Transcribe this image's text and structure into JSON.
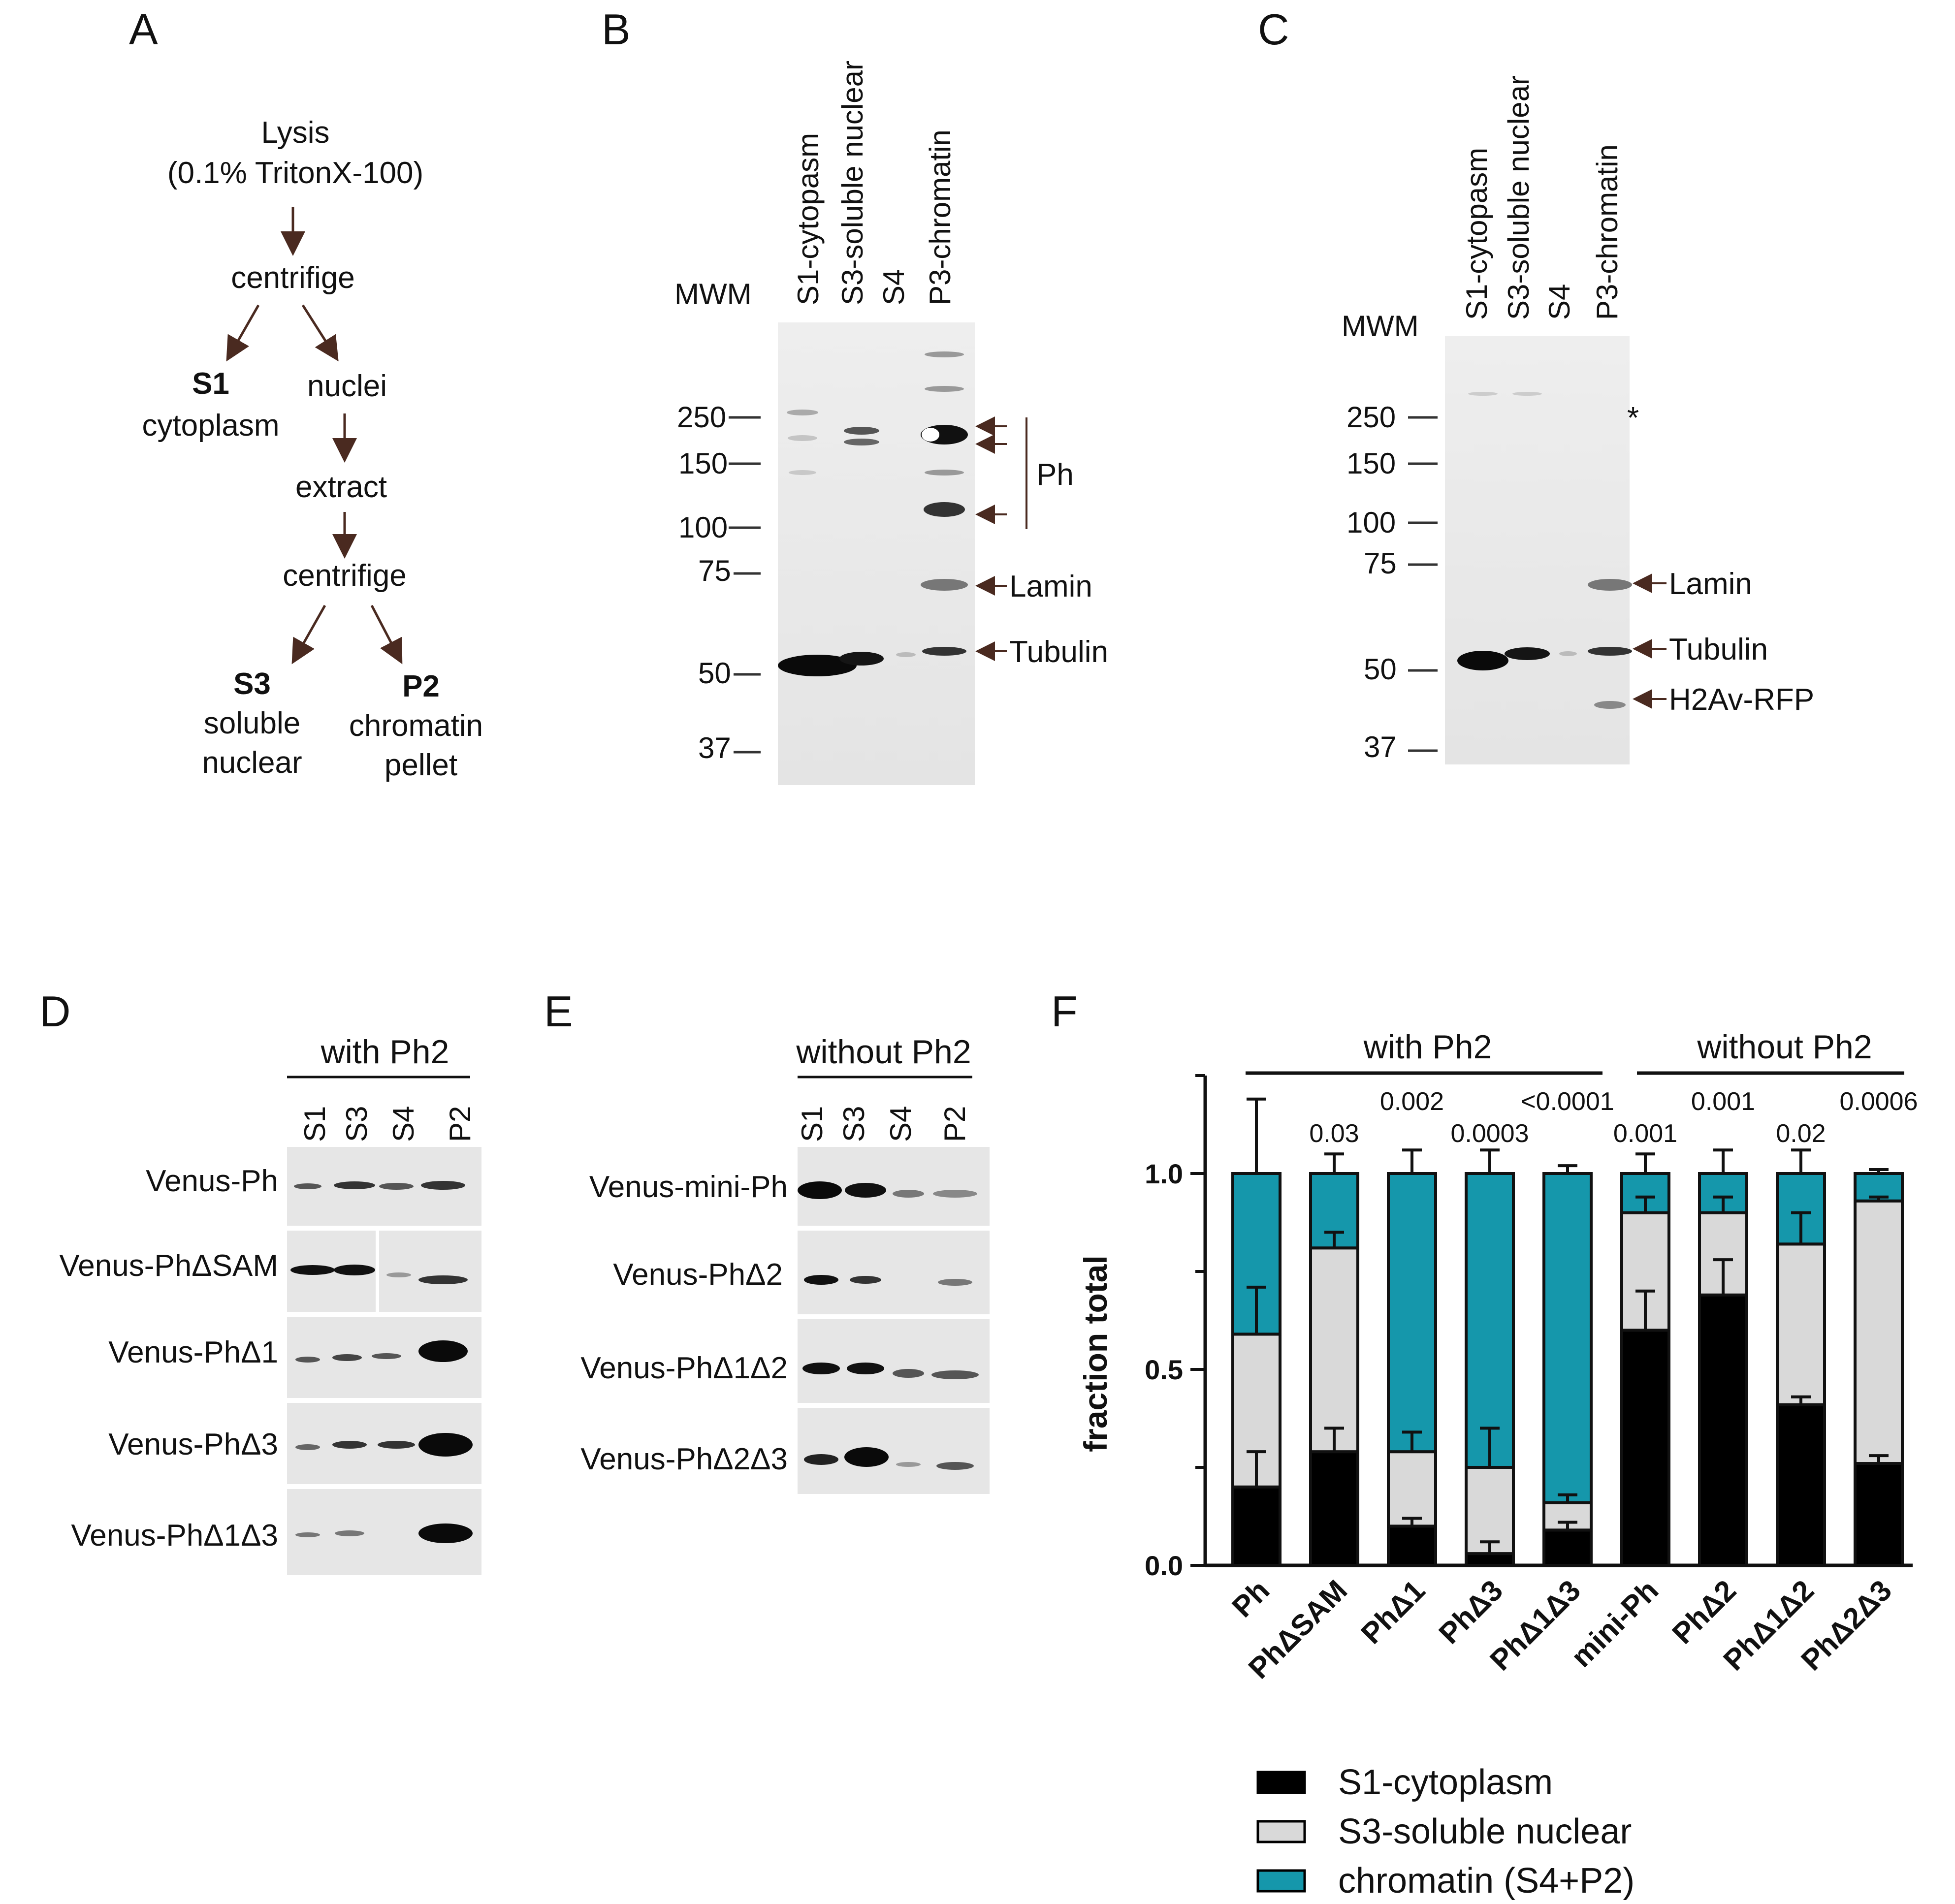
{
  "panels": {
    "A": "A",
    "B": "B",
    "C": "C",
    "D": "D",
    "E": "E",
    "F": "F"
  },
  "flowchart": {
    "lysis": "Lysis",
    "lysis_detail": "(0.1% TritonX-100)",
    "centrifuge1": "centrifige",
    "s1_bold": "S1",
    "s1_label": "cytoplasm",
    "nuclei": "nuclei",
    "extract": "extract",
    "centrifuge2": "centrifige",
    "s3_bold": "S3",
    "s3_line1": "soluble",
    "s3_line2": "nuclear",
    "p2_bold": "P2",
    "p2_line1": "chromatin",
    "p2_line2": "pellet"
  },
  "blot_b": {
    "mwm": "MWM",
    "lanes": [
      "S1-cytopasm",
      "S3-soluble nuclear",
      "S4",
      "P3-chromatin"
    ],
    "markers": [
      "250",
      "150",
      "100",
      "75",
      "50",
      "37"
    ],
    "bands": [
      "Ph",
      "Lamin",
      "Tubulin"
    ]
  },
  "blot_c": {
    "mwm": "MWM",
    "lanes": [
      "S1-cytopasm",
      "S3-soluble nuclear",
      "S4",
      "P3-chromatin"
    ],
    "markers": [
      "250",
      "150",
      "100",
      "75",
      "50",
      "37"
    ],
    "star": "*",
    "bands": [
      "Lamin",
      "Tubulin",
      "H2Av-RFP"
    ]
  },
  "blot_d": {
    "header": "with Ph2",
    "lanes": [
      "S1",
      "S3",
      "S4",
      "P2"
    ],
    "rows": [
      "Venus-Ph",
      "Venus-PhΔSAM",
      "Venus-PhΔ1",
      "Venus-PhΔ3",
      "Venus-PhΔ1Δ3"
    ]
  },
  "blot_e": {
    "header": "without Ph2",
    "lanes": [
      "S1",
      "S3",
      "S4",
      "P2"
    ],
    "rows": [
      "Venus-mini-Ph",
      "Venus-PhΔ2",
      "Venus-PhΔ1Δ2",
      "Venus-PhΔ2Δ3"
    ]
  },
  "chart_data": {
    "type": "bar",
    "stacked": true,
    "title": "",
    "xlabel": "",
    "ylabel": "fraction total",
    "ylim": [
      0,
      1.25
    ],
    "yticks": [
      "0.0",
      "0.5",
      "1.0"
    ],
    "group_labels": [
      "with Ph2",
      "without Ph2"
    ],
    "categories": [
      "Ph",
      "PhΔSAM",
      "PhΔ1",
      "PhΔ3",
      "PhΔ1Δ3",
      "mini-Ph",
      "PhΔ2",
      "PhΔ1Δ2",
      "PhΔ2Δ3"
    ],
    "p_values": [
      "",
      "0.03",
      "0.002",
      "0.0003",
      "<0.0001",
      "0.001",
      "0.001",
      "0.02",
      "0.0006"
    ],
    "series": [
      {
        "name": "S1-cytoplasm",
        "color": "#000000",
        "values": [
          0.2,
          0.29,
          0.1,
          0.03,
          0.09,
          0.6,
          0.69,
          0.41,
          0.26
        ],
        "errors": [
          0.09,
          0.06,
          0.02,
          0.03,
          0.02,
          0.1,
          0.09,
          0.02,
          0.02
        ]
      },
      {
        "name": "S3-soluble nuclear",
        "color": "#d9d9d9",
        "values": [
          0.39,
          0.52,
          0.19,
          0.22,
          0.07,
          0.3,
          0.21,
          0.41,
          0.67
        ],
        "errors": [
          0.12,
          0.04,
          0.05,
          0.1,
          0.02,
          0.04,
          0.04,
          0.08,
          0.01
        ]
      },
      {
        "name": "chromatin (S4+P2)",
        "color": "#1597ab",
        "values": [
          0.41,
          0.19,
          0.71,
          0.75,
          0.84,
          0.1,
          0.1,
          0.18,
          0.07
        ],
        "errors": [
          0.19,
          0.05,
          0.06,
          0.06,
          0.02,
          0.05,
          0.06,
          0.06,
          0.01
        ]
      }
    ]
  }
}
